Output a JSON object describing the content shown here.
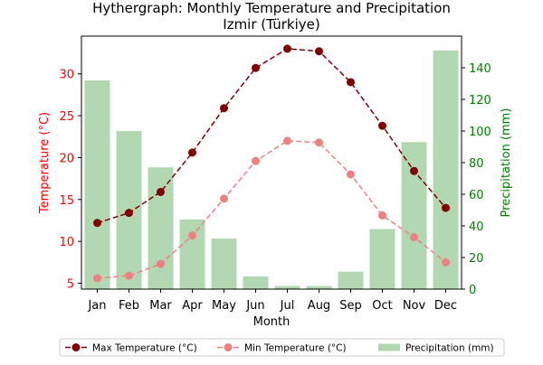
{
  "chart_data": {
    "type": "bar",
    "title_line1": "Hythergraph: Monthly Temperature and Precipitation",
    "title_line2": "Izmir (Türkiye)",
    "xlabel": "Month",
    "ylabel_left": "Temperature (°C)",
    "ylabel_right": "Precipitation (mm)",
    "categories": [
      "Jan",
      "Feb",
      "Mar",
      "Apr",
      "May",
      "Jun",
      "Jul",
      "Aug",
      "Sep",
      "Oct",
      "Nov",
      "Dec"
    ],
    "ylim_left": [
      4.3,
      34.5
    ],
    "ylim_right": [
      0,
      160
    ],
    "yticks_left": [
      5,
      10,
      15,
      20,
      25,
      30
    ],
    "yticks_right": [
      0,
      20,
      40,
      60,
      80,
      100,
      120,
      140
    ],
    "series": [
      {
        "name": "Max Temperature (°C)",
        "kind": "line",
        "axis": "left",
        "color": "#800000",
        "style": "dashed",
        "values": [
          12.2,
          13.4,
          15.9,
          20.6,
          25.9,
          30.7,
          33.0,
          32.7,
          29.0,
          23.8,
          18.4,
          14.0
        ]
      },
      {
        "name": "Min Temperature (°C)",
        "kind": "line",
        "axis": "left",
        "color": "#f08080",
        "style": "dashed",
        "values": [
          5.6,
          5.9,
          7.3,
          10.7,
          15.1,
          19.6,
          22.0,
          21.8,
          18.0,
          13.1,
          10.5,
          7.5
        ]
      },
      {
        "name": "Precipitation (mm)",
        "kind": "bar",
        "axis": "right",
        "color": "#b2d8b2",
        "values": [
          132,
          100,
          77,
          44,
          32,
          8,
          2,
          2,
          11,
          38,
          93,
          151
        ]
      }
    ],
    "legend_location": "bottom",
    "left_axis_color": "#ff0000",
    "right_axis_color": "#008000",
    "grid": false
  }
}
